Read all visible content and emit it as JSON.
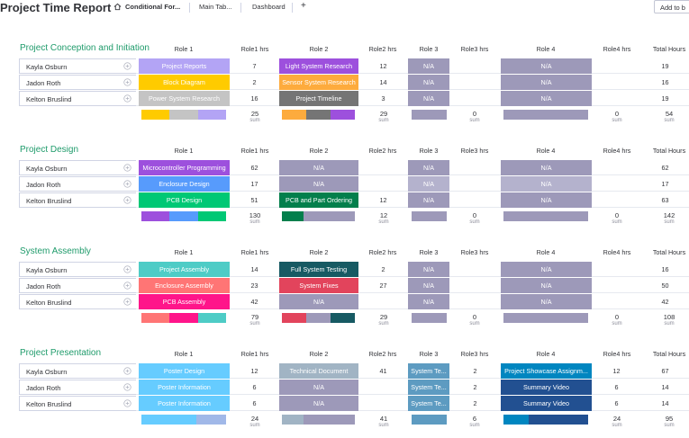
{
  "board": {
    "title": "Project Time Report",
    "tabs": [
      "Conditional For...",
      "Main Tab...",
      "Dashboard"
    ],
    "add_tab": "+",
    "add_button": "Add to b"
  },
  "colors": {
    "light_purple": "#b3a4f5",
    "purple": "#9d50dd",
    "gold": "#ffcb00",
    "orange": "#fdab3d",
    "dark_grey": "#757575",
    "grey": "#c4c4c4",
    "na": "#9d99b9",
    "blue_light": "#579bfc",
    "green": "#00c875",
    "dark_green": "#037f4c",
    "teal": "#4eccc6",
    "salmon": "#ff7575",
    "dark_teal": "#175a63",
    "red": "#e2445c",
    "pink": "#ff158a",
    "steel": "#a1b4c4",
    "sky": "#66ccff",
    "navy": "#225091",
    "periwinkle": "#a1b8e8",
    "grey_blue": "#5d9bc1",
    "ocean": "#0086c0",
    "group_green": "#1f9b6b"
  },
  "columns": {
    "role1": "Role 1",
    "role1_hrs": "Role1 hrs",
    "role2": "Role 2",
    "role2_hrs": "Role2 hrs",
    "role3": "Role 3",
    "role3_hrs": "Role3 hrs",
    "role4": "Role 4",
    "role4_hrs": "Role4 hrs",
    "total": "Total Hours"
  },
  "sum_label": "sum",
  "groups": [
    {
      "title": "Project Conception and Initiation",
      "rows": [
        {
          "name": "Kayla Osburn",
          "r1": "Project Reports",
          "c1": "#b3a4f5",
          "h1": "7",
          "r2": "Light System Research",
          "c2": "#9d50dd",
          "h2": "12",
          "r3": "N/A",
          "c3": "#9d99b9",
          "h3": "",
          "r4": "N/A",
          "c4": "#9d99b9",
          "h4": "",
          "total": "19"
        },
        {
          "name": "Jadon Roth",
          "r1": "Block Diagram",
          "c1": "#ffcb00",
          "h1": "2",
          "r2": "Sensor System Research",
          "c2": "#fdab3d",
          "h2": "14",
          "r3": "N/A",
          "c3": "#9d99b9",
          "h3": "",
          "r4": "N/A",
          "c4": "#9d99b9",
          "h4": "",
          "total": "16"
        },
        {
          "name": "Kelton Bruslind",
          "r1": "Power System Research",
          "c1": "#c4c4c4",
          "h1": "16",
          "r2": "Project Timeline",
          "c2": "#757575",
          "h2": "3",
          "r3": "N/A",
          "c3": "#9d99b9",
          "h3": "",
          "r4": "N/A",
          "c4": "#9d99b9",
          "h4": "",
          "total": "19"
        }
      ],
      "sums": {
        "h1": "25",
        "h2": "29",
        "h3": "0",
        "h4": "0",
        "total": "54"
      },
      "bars": {
        "r1": [
          {
            "c": "#ffcb00",
            "f": 0.333
          },
          {
            "c": "#c4c4c4",
            "f": 0.334
          },
          {
            "c": "#b3a4f5",
            "f": 0.333
          }
        ],
        "r2": [
          {
            "c": "#fdab3d",
            "f": 0.333
          },
          {
            "c": "#757575",
            "f": 0.334
          },
          {
            "c": "#9d50dd",
            "f": 0.333
          }
        ],
        "r3": [
          {
            "c": "#9d99b9",
            "f": 1
          }
        ],
        "r4": [
          {
            "c": "#9d99b9",
            "f": 1
          }
        ]
      }
    },
    {
      "title": "Project Design",
      "rows": [
        {
          "name": "Kayla Osburn",
          "r1": "Microcontroller Programming",
          "c1": "#9d50dd",
          "h1": "62",
          "r2": "N/A",
          "c2": "#9d99b9",
          "h2": "",
          "r3": "N/A",
          "c3": "#9d99b9",
          "h3": "",
          "r4": "N/A",
          "c4": "#9d99b9",
          "h4": "",
          "total": "62"
        },
        {
          "name": "Jadon Roth",
          "r1": "Enclosure Design",
          "c1": "#579bfc",
          "h1": "17",
          "r2": "N/A",
          "c2": "#9d99b9",
          "h2": "",
          "r3": "N/A",
          "c3": "#b4b2cd",
          "h3": "",
          "r4": "N/A",
          "c4": "#b4b2cd",
          "h4": "",
          "total": "17"
        },
        {
          "name": "Kelton Bruslind",
          "r1": "PCB Design",
          "c1": "#00c875",
          "h1": "51",
          "r2": "PCB and Part Ordering",
          "c2": "#037f4c",
          "h2": "12",
          "r3": "N/A",
          "c3": "#9d99b9",
          "h3": "",
          "r4": "N/A",
          "c4": "#9d99b9",
          "h4": "",
          "total": "63"
        }
      ],
      "sums": {
        "h1": "130",
        "h2": "12",
        "h3": "0",
        "h4": "0",
        "total": "142"
      },
      "bars": {
        "r1": [
          {
            "c": "#9d50dd",
            "f": 0.333
          },
          {
            "c": "#579bfc",
            "f": 0.334
          },
          {
            "c": "#00c875",
            "f": 0.333
          }
        ],
        "r2": [
          {
            "c": "#037f4c",
            "f": 0.3
          },
          {
            "c": "#9d99b9",
            "f": 0.7
          }
        ],
        "r3": [
          {
            "c": "#9d99b9",
            "f": 1
          }
        ],
        "r4": [
          {
            "c": "#9d99b9",
            "f": 1
          }
        ]
      }
    },
    {
      "title": "System Assembly",
      "rows": [
        {
          "name": "Kayla Osburn",
          "r1": "Project Assembly",
          "c1": "#4eccc6",
          "h1": "14",
          "r2": "Full System Testing",
          "c2": "#175a63",
          "h2": "2",
          "r3": "N/A",
          "c3": "#9d99b9",
          "h3": "",
          "r4": "N/A",
          "c4": "#9d99b9",
          "h4": "",
          "total": "16"
        },
        {
          "name": "Jadon Roth",
          "r1": "Enclosure Assembly",
          "c1": "#ff7575",
          "h1": "23",
          "r2": "System Fixes",
          "c2": "#e2445c",
          "h2": "27",
          "r3": "N/A",
          "c3": "#9d99b9",
          "h3": "",
          "r4": "N/A",
          "c4": "#9d99b9",
          "h4": "",
          "total": "50"
        },
        {
          "name": "Kelton Bruslind",
          "r1": "PCB Assembly",
          "c1": "#ff158a",
          "h1": "42",
          "r2": "N/A",
          "c2": "#9d99b9",
          "h2": "",
          "r3": "N/A",
          "c3": "#9d99b9",
          "h3": "",
          "r4": "N/A",
          "c4": "#9d99b9",
          "h4": "",
          "total": "42"
        }
      ],
      "sums": {
        "h1": "79",
        "h2": "29",
        "h3": "0",
        "h4": "0",
        "total": "108"
      },
      "bars": {
        "r1": [
          {
            "c": "#ff7575",
            "f": 0.333
          },
          {
            "c": "#ff158a",
            "f": 0.334
          },
          {
            "c": "#4eccc6",
            "f": 0.333
          }
        ],
        "r2": [
          {
            "c": "#e2445c",
            "f": 0.333
          },
          {
            "c": "#9d99b9",
            "f": 0.334
          },
          {
            "c": "#175a63",
            "f": 0.333
          }
        ],
        "r3": [
          {
            "c": "#9d99b9",
            "f": 1
          }
        ],
        "r4": [
          {
            "c": "#9d99b9",
            "f": 1
          }
        ]
      }
    },
    {
      "title": "Project Presentation",
      "rows": [
        {
          "name": "Kayla Osburn",
          "r1": "Poster Design",
          "c1": "#66ccff",
          "h1": "12",
          "r2": "Technical Document",
          "c2": "#a1b4c4",
          "h2": "41",
          "r3": "System Te...",
          "c3": "#5d9bc1",
          "h3": "2",
          "r4": "Project Showcase Assignm...",
          "c4": "#0086c0",
          "h4": "12",
          "total": "67"
        },
        {
          "name": "Jadon Roth",
          "r1": "Poster Information",
          "c1": "#66ccff",
          "h1": "6",
          "r2": "N/A",
          "c2": "#9d99b9",
          "h2": "",
          "r3": "System Te...",
          "c3": "#5d9bc1",
          "h3": "2",
          "r4": "Summary Video",
          "c4": "#225091",
          "h4": "6",
          "total": "14"
        },
        {
          "name": "Kelton Bruslind",
          "r1": "Poster Information",
          "c1": "#66ccff",
          "h1": "6",
          "r2": "N/A",
          "c2": "#9d99b9",
          "h2": "",
          "r3": "System Te...",
          "c3": "#5d9bc1",
          "h3": "2",
          "r4": "Summary Video",
          "c4": "#225091",
          "h4": "6",
          "total": "14"
        }
      ],
      "sums": {
        "h1": "24",
        "h2": "41",
        "h3": "6",
        "h4": "24",
        "total": "95"
      },
      "bars": {
        "r1": [
          {
            "c": "#66ccff",
            "f": 0.65
          },
          {
            "c": "#a1b8e8",
            "f": 0.35
          }
        ],
        "r2": [
          {
            "c": "#a1b4c4",
            "f": 0.3
          },
          {
            "c": "#9d99b9",
            "f": 0.7
          }
        ],
        "r3": [
          {
            "c": "#5d9bc1",
            "f": 1
          }
        ],
        "r4": [
          {
            "c": "#0086c0",
            "f": 0.3
          },
          {
            "c": "#225091",
            "f": 0.7
          }
        ]
      }
    }
  ]
}
